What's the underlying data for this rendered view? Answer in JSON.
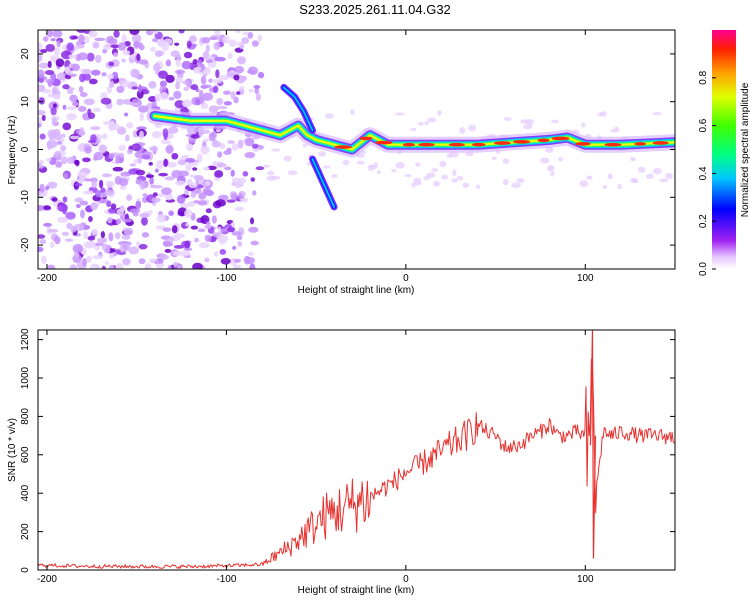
{
  "figure": {
    "title": "S233.2025.261.11.04.G32"
  },
  "chart_data": [
    {
      "id": "spectrogram",
      "type": "heatmap",
      "title": "S233.2025.261.11.04.G32",
      "xlabel": "Height of straight line (km)",
      "ylabel": "Frequency (Hz)",
      "xlim": [
        -205,
        150
      ],
      "ylim": [
        -25,
        25
      ],
      "xticks": [
        -200,
        -100,
        0,
        100
      ],
      "yticks": [
        -20,
        -10,
        0,
        10,
        20
      ],
      "colorbar": {
        "label": "Normalized spectral amplitude",
        "range": [
          0,
          1
        ],
        "ticks": [
          0.0,
          0.2,
          0.4,
          0.6,
          0.8
        ]
      },
      "ridge": {
        "description": "Dominant frequency ridge near 0-2 Hz from about -80 km to 150 km; broadband noise below -80 km",
        "points": [
          {
            "x": -140,
            "y": 7
          },
          {
            "x": -120,
            "y": 6
          },
          {
            "x": -100,
            "y": 6
          },
          {
            "x": -90,
            "y": 5
          },
          {
            "x": -80,
            "y": 4
          },
          {
            "x": -70,
            "y": 3
          },
          {
            "x": -60,
            "y": 5
          },
          {
            "x": -55,
            "y": 3
          },
          {
            "x": -50,
            "y": 2
          },
          {
            "x": -40,
            "y": 1
          },
          {
            "x": -30,
            "y": 0
          },
          {
            "x": -20,
            "y": 3
          },
          {
            "x": -10,
            "y": 1
          },
          {
            "x": 0,
            "y": 1
          },
          {
            "x": 20,
            "y": 1
          },
          {
            "x": 40,
            "y": 1
          },
          {
            "x": 60,
            "y": 1.5
          },
          {
            "x": 80,
            "y": 2
          },
          {
            "x": 90,
            "y": 2.5
          },
          {
            "x": 100,
            "y": 1
          },
          {
            "x": 120,
            "y": 1
          },
          {
            "x": 150,
            "y": 1.5
          }
        ],
        "branches": [
          [
            {
              "x": -68,
              "y": 13
            },
            {
              "x": -62,
              "y": 11
            },
            {
              "x": -57,
              "y": 8
            },
            {
              "x": -52,
              "y": 4
            }
          ],
          [
            {
              "x": -52,
              "y": -2
            },
            {
              "x": -46,
              "y": -7
            },
            {
              "x": -40,
              "y": -12
            }
          ]
        ]
      }
    },
    {
      "id": "snr",
      "type": "line",
      "xlabel": "Height of straight line (km)",
      "ylabel": "SNR (10 * v/v)",
      "xlim": [
        -205,
        150
      ],
      "ylim": [
        0,
        1250
      ],
      "xticks": [
        -200,
        -100,
        0,
        100
      ],
      "yticks": [
        0,
        200,
        400,
        600,
        800,
        1000,
        1200
      ],
      "series": [
        {
          "name": "SNR",
          "color": "#e8312e",
          "x": [
            -205,
            -180,
            -150,
            -120,
            -100,
            -90,
            -80,
            -75,
            -70,
            -65,
            -60,
            -55,
            -50,
            -45,
            -40,
            -35,
            -30,
            -25,
            -20,
            -15,
            -10,
            -5,
            0,
            5,
            10,
            15,
            20,
            25,
            30,
            35,
            40,
            45,
            50,
            55,
            60,
            65,
            70,
            75,
            80,
            85,
            90,
            95,
            100,
            102,
            104,
            106,
            110,
            115,
            120,
            130,
            140,
            150
          ],
          "y": [
            25,
            20,
            18,
            18,
            22,
            25,
            30,
            60,
            90,
            120,
            160,
            200,
            240,
            280,
            300,
            320,
            340,
            360,
            380,
            410,
            440,
            470,
            510,
            530,
            560,
            590,
            620,
            650,
            680,
            710,
            760,
            720,
            700,
            640,
            640,
            660,
            700,
            720,
            760,
            700,
            700,
            720,
            700,
            500,
            1150,
            400,
            720,
            700,
            720,
            700,
            700,
            690
          ]
        }
      ]
    }
  ]
}
